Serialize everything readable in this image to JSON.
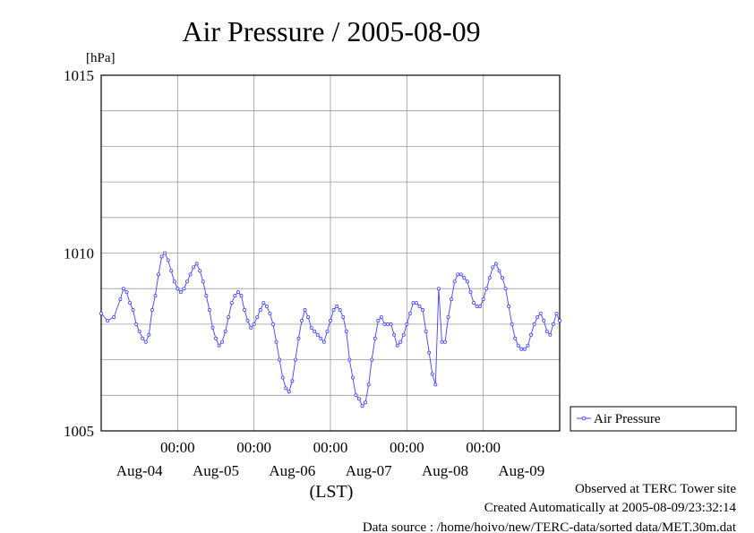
{
  "chart_data": {
    "type": "line",
    "title": "Air Pressure / 2005-08-09",
    "ylabel": "[hPa]",
    "xlabel": "(LST)",
    "ylim": [
      1005,
      1015
    ],
    "yticks": [
      "1015",
      "1010",
      "1005"
    ],
    "xlim_hours": [
      0,
      144
    ],
    "xticks_time": [
      "00:00",
      "00:00",
      "00:00",
      "00:00",
      "00:00"
    ],
    "xticks_date": [
      "Aug-04",
      "Aug-05",
      "Aug-06",
      "Aug-07",
      "Aug-08",
      "Aug-09"
    ],
    "grid": true,
    "legend_position": "right",
    "series": [
      {
        "name": "Air Pressure",
        "color": "#4040ff",
        "points": [
          [
            0,
            1008.3
          ],
          [
            2,
            1008.1
          ],
          [
            4,
            1008.2
          ],
          [
            6,
            1008.7
          ],
          [
            7,
            1009.0
          ],
          [
            8,
            1008.9
          ],
          [
            9,
            1008.6
          ],
          [
            10,
            1008.4
          ],
          [
            11,
            1008.0
          ],
          [
            12,
            1007.8
          ],
          [
            13,
            1007.6
          ],
          [
            14,
            1007.5
          ],
          [
            15,
            1007.7
          ],
          [
            16,
            1008.4
          ],
          [
            17,
            1008.8
          ],
          [
            18,
            1009.4
          ],
          [
            19,
            1009.9
          ],
          [
            20,
            1010.0
          ],
          [
            21,
            1009.8
          ],
          [
            22,
            1009.5
          ],
          [
            23,
            1009.2
          ],
          [
            24,
            1009.0
          ],
          [
            25,
            1008.9
          ],
          [
            26,
            1009.0
          ],
          [
            27,
            1009.2
          ],
          [
            28,
            1009.4
          ],
          [
            29,
            1009.6
          ],
          [
            30,
            1009.7
          ],
          [
            31,
            1009.5
          ],
          [
            32,
            1009.2
          ],
          [
            33,
            1008.8
          ],
          [
            34,
            1008.4
          ],
          [
            35,
            1007.9
          ],
          [
            36,
            1007.6
          ],
          [
            37,
            1007.4
          ],
          [
            38,
            1007.5
          ],
          [
            39,
            1007.8
          ],
          [
            40,
            1008.2
          ],
          [
            41,
            1008.6
          ],
          [
            42,
            1008.8
          ],
          [
            43,
            1008.9
          ],
          [
            44,
            1008.8
          ],
          [
            45,
            1008.4
          ],
          [
            46,
            1008.1
          ],
          [
            47,
            1007.9
          ],
          [
            48,
            1008.0
          ],
          [
            49,
            1008.2
          ],
          [
            50,
            1008.4
          ],
          [
            51,
            1008.6
          ],
          [
            52,
            1008.5
          ],
          [
            53,
            1008.3
          ],
          [
            54,
            1008.0
          ],
          [
            55,
            1007.5
          ],
          [
            56,
            1007.0
          ],
          [
            57,
            1006.5
          ],
          [
            58,
            1006.2
          ],
          [
            59,
            1006.1
          ],
          [
            60,
            1006.4
          ],
          [
            61,
            1007.0
          ],
          [
            62,
            1007.6
          ],
          [
            63,
            1008.1
          ],
          [
            64,
            1008.4
          ],
          [
            65,
            1008.2
          ],
          [
            66,
            1007.9
          ],
          [
            67,
            1007.8
          ],
          [
            68,
            1007.7
          ],
          [
            69,
            1007.6
          ],
          [
            70,
            1007.5
          ],
          [
            71,
            1007.8
          ],
          [
            72,
            1008.1
          ],
          [
            73,
            1008.4
          ],
          [
            74,
            1008.5
          ],
          [
            75,
            1008.4
          ],
          [
            76,
            1008.2
          ],
          [
            77,
            1007.8
          ],
          [
            78,
            1007.0
          ],
          [
            79,
            1006.5
          ],
          [
            80,
            1006.0
          ],
          [
            81,
            1005.9
          ],
          [
            82,
            1005.7
          ],
          [
            83,
            1005.8
          ],
          [
            84,
            1006.3
          ],
          [
            85,
            1007.0
          ],
          [
            86,
            1007.6
          ],
          [
            87,
            1008.1
          ],
          [
            88,
            1008.2
          ],
          [
            89,
            1008.0
          ],
          [
            90,
            1008.0
          ],
          [
            91,
            1008.0
          ],
          [
            92,
            1007.7
          ],
          [
            93,
            1007.4
          ],
          [
            94,
            1007.5
          ],
          [
            95,
            1007.7
          ],
          [
            96,
            1008.0
          ],
          [
            97,
            1008.3
          ],
          [
            98,
            1008.6
          ],
          [
            99,
            1008.6
          ],
          [
            100,
            1008.5
          ],
          [
            101,
            1008.4
          ],
          [
            102,
            1007.8
          ],
          [
            103,
            1007.2
          ],
          [
            104,
            1006.6
          ],
          [
            105,
            1006.3
          ],
          [
            106,
            1009.0
          ],
          [
            107,
            1007.5
          ],
          [
            108,
            1007.5
          ],
          [
            109,
            1008.2
          ],
          [
            110,
            1008.7
          ],
          [
            111,
            1009.2
          ],
          [
            112,
            1009.4
          ],
          [
            113,
            1009.4
          ],
          [
            114,
            1009.3
          ],
          [
            115,
            1009.2
          ],
          [
            116,
            1008.9
          ],
          [
            117,
            1008.6
          ],
          [
            118,
            1008.5
          ],
          [
            119,
            1008.5
          ],
          [
            120,
            1008.7
          ],
          [
            121,
            1009.0
          ],
          [
            122,
            1009.3
          ],
          [
            123,
            1009.6
          ],
          [
            124,
            1009.7
          ],
          [
            125,
            1009.5
          ],
          [
            126,
            1009.3
          ],
          [
            127,
            1009.0
          ],
          [
            128,
            1008.5
          ],
          [
            129,
            1008.0
          ],
          [
            130,
            1007.6
          ],
          [
            131,
            1007.4
          ],
          [
            132,
            1007.3
          ],
          [
            133,
            1007.3
          ],
          [
            134,
            1007.4
          ],
          [
            135,
            1007.7
          ],
          [
            136,
            1008.0
          ],
          [
            137,
            1008.2
          ],
          [
            138,
            1008.3
          ],
          [
            139,
            1008.1
          ],
          [
            140,
            1007.8
          ],
          [
            141,
            1007.7
          ],
          [
            142,
            1008.0
          ],
          [
            143,
            1008.3
          ],
          [
            144,
            1008.1
          ]
        ]
      }
    ]
  },
  "footer": {
    "line1": "Observed at TERC Tower site",
    "line2": "Created Automatically at 2005-08-09/23:32:14",
    "line3": "Data source : /home/hoivo/new/TERC-data/sorted  data/MET.30m.dat"
  }
}
